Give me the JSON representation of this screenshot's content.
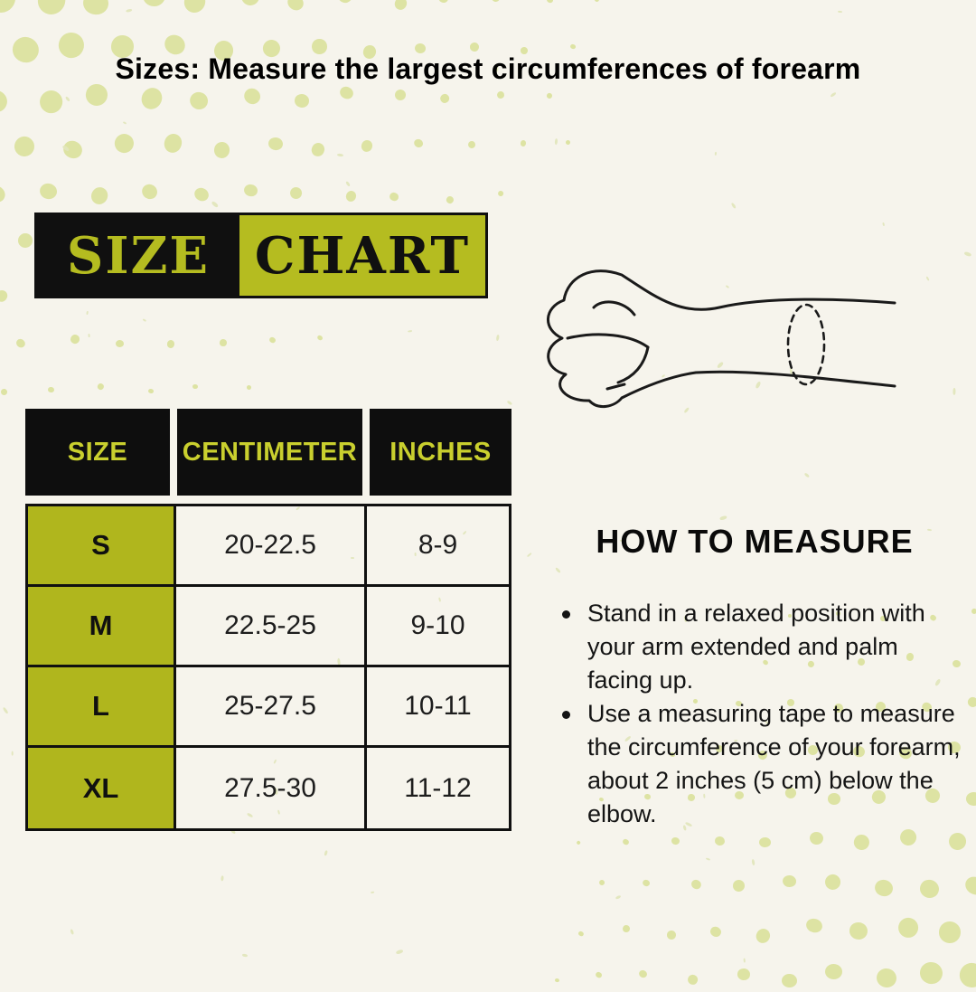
{
  "palette": {
    "background": "#f6f4ec",
    "ink_black": "#101010",
    "accent_green": "#b5bc20",
    "cell_green": "#b0b61d",
    "header_text_green": "#c9cf2e",
    "halftone_dot": "#dde3a3",
    "speckle": "#e2e6bd"
  },
  "title": "Sizes: Measure the largest circumferences of forearm",
  "banner": {
    "left_label": "SIZE",
    "right_label": "CHART"
  },
  "illustration": {
    "name": "fist-forearm-with-measuring-ellipse"
  },
  "chart_data": {
    "type": "table",
    "title": "SIZE CHART",
    "columns": [
      "SIZE",
      "CENTIMETER",
      "INCHES"
    ],
    "rows": [
      [
        "S",
        "20-22.5",
        "8-9"
      ],
      [
        "M",
        "22.5-25",
        "9-10"
      ],
      [
        "L",
        "25-27.5",
        "10-11"
      ],
      [
        "XL",
        "27.5-30",
        "11-12"
      ]
    ]
  },
  "how_to_measure": {
    "heading": "HOW TO MEASURE",
    "bullets": [
      "Stand in a relaxed position with your arm extended and palm facing up.",
      "Use a measuring tape to measure the circumference of your forearm, about 2 inches (5 cm) below the elbow."
    ]
  }
}
